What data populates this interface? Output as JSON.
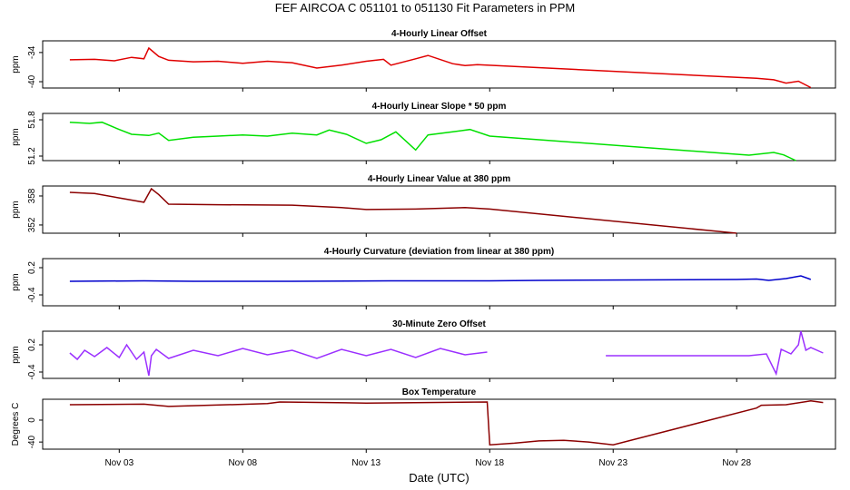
{
  "title": "FEF   AIRCOA C   051101 to 051130   Fit Parameters in PPM",
  "chart_data": [
    {
      "type": "line",
      "title": "4-Hourly Linear Offset",
      "ylabel": "ppm",
      "color": "#e00000",
      "xlim": [
        -0.1,
        32
      ],
      "ylim": [
        -41.3,
        -31.6
      ],
      "yticks": [
        -40,
        -34
      ],
      "x": [
        1,
        2,
        2.8,
        3.5,
        4,
        4.2,
        4.6,
        5,
        6,
        7,
        8,
        9,
        10,
        11,
        12,
        13,
        13.7,
        14,
        15,
        15.5,
        16.5,
        17,
        17.5,
        28.8,
        29.5,
        30,
        30.5,
        31
      ],
      "values": [
        -35.5,
        -35.4,
        -35.7,
        -35.0,
        -35.3,
        -33.1,
        -34.8,
        -35.6,
        -35.9,
        -35.8,
        -36.2,
        -35.8,
        -36.1,
        -37.2,
        -36.6,
        -35.8,
        -35.4,
        -36.6,
        -35.3,
        -34.6,
        -36.3,
        -36.7,
        -36.5,
        -39.3,
        -39.6,
        -40.3,
        -39.9,
        -41.2
      ]
    },
    {
      "type": "line",
      "title": "4-Hourly Linear Slope * 50 ppm",
      "ylabel": "ppm",
      "color": "#00e000",
      "xlim": [
        -0.1,
        32
      ],
      "ylim": [
        51.125,
        51.905
      ],
      "yticks": [
        51.2,
        51.8
      ],
      "x": [
        1,
        1.8,
        2.3,
        3,
        3.5,
        4.2,
        4.6,
        5,
        6,
        7,
        8,
        9,
        10,
        11,
        11.5,
        12.2,
        13,
        13.6,
        14.2,
        15,
        15.5,
        16.5,
        17.2,
        18,
        28.5,
        29.5,
        29.9,
        30.4
      ],
      "values": [
        51.76,
        51.74,
        51.76,
        51.64,
        51.56,
        51.54,
        51.58,
        51.46,
        51.51,
        51.53,
        51.55,
        51.53,
        51.58,
        51.55,
        51.63,
        51.56,
        51.41,
        51.47,
        51.6,
        51.3,
        51.55,
        51.6,
        51.64,
        51.53,
        51.215,
        51.26,
        51.22,
        51.125
      ]
    },
    {
      "type": "line",
      "title": "4-Hourly Linear Value at 380 ppm",
      "ylabel": "ppm",
      "color": "#8b0000",
      "xlim": [
        -0.1,
        32
      ],
      "ylim": [
        350.3,
        360.06
      ],
      "yticks": [
        352,
        358
      ],
      "x": [
        1,
        2,
        3,
        4,
        4.3,
        4.6,
        5,
        7,
        10,
        12,
        13,
        15,
        17,
        18,
        28
      ],
      "values": [
        358.75,
        358.5,
        357.6,
        356.7,
        359.5,
        358.3,
        356.3,
        356.2,
        356.1,
        355.6,
        355.2,
        355.3,
        355.6,
        355.3,
        350.3
      ]
    },
    {
      "type": "line",
      "title": "4-Hourly Curvature (deviation from linear at 380 ppm)",
      "ylabel": "ppm",
      "color": "#0000cc",
      "xlim": [
        -0.1,
        32
      ],
      "ylim": [
        -0.64,
        0.4
      ],
      "yticks": [
        -0.4,
        0.2
      ],
      "x": [
        1,
        4,
        6,
        10,
        14,
        18,
        20,
        24,
        28,
        28.8,
        29.3,
        30,
        30.6,
        31
      ],
      "values": [
        -0.1,
        -0.09,
        -0.1,
        -0.1,
        -0.09,
        -0.09,
        -0.08,
        -0.07,
        -0.06,
        -0.05,
        -0.08,
        -0.04,
        0.02,
        -0.06
      ]
    },
    {
      "type": "line",
      "title": "30-Minute Zero Offset",
      "ylabel": "ppm",
      "color": "#9b30ff",
      "xlim": [
        -0.1,
        32
      ],
      "ylim": [
        -0.54,
        0.5
      ],
      "yticks": [
        -0.4,
        0.2
      ],
      "x": [
        1,
        1.3,
        1.6,
        2,
        2.5,
        3,
        3.3,
        3.7,
        4,
        4.2,
        4.3,
        4.5,
        5,
        6,
        7,
        8,
        9,
        10,
        11,
        12,
        13,
        14,
        15,
        16,
        17,
        17.9,
        18,
        22.7,
        28.5,
        29.2,
        29.6,
        29.8,
        30.2,
        30.5,
        30.6,
        30.8,
        31,
        31.5
      ],
      "values": [
        0.02,
        -0.12,
        0.08,
        -0.06,
        0.14,
        -0.08,
        0.2,
        -0.12,
        0.04,
        -0.48,
        -0.04,
        0.1,
        -0.1,
        0.08,
        -0.04,
        0.12,
        -0.02,
        0.08,
        -0.1,
        0.1,
        -0.04,
        0.1,
        -0.08,
        0.12,
        -0.02,
        0.04,
        null,
        -0.04,
        -0.04,
        0.0,
        -0.44,
        0.1,
        0.0,
        0.2,
        0.5,
        0.08,
        0.14,
        0.02
      ]
    },
    {
      "type": "line",
      "title": "Box Temperature",
      "ylabel": "Degrees C",
      "xlabel": "Date (UTC)",
      "color": "#8b0000",
      "xlim": [
        -0.1,
        32
      ],
      "ylim": [
        -53,
        38
      ],
      "yticks": [
        -40,
        0
      ],
      "xticks": [
        {
          "value": 3,
          "label": "Nov 03"
        },
        {
          "value": 8,
          "label": "Nov 08"
        },
        {
          "value": 13,
          "label": "Nov 13"
        },
        {
          "value": 18,
          "label": "Nov 18"
        },
        {
          "value": 23,
          "label": "Nov 23"
        },
        {
          "value": 28,
          "label": "Nov 28"
        }
      ],
      "x": [
        1,
        4,
        4.5,
        5,
        9,
        9.5,
        13,
        17.9,
        18,
        19,
        20,
        21,
        22,
        23,
        28.8,
        29,
        30,
        31,
        31.5
      ],
      "values": [
        28,
        29,
        27,
        25,
        30,
        33,
        31,
        33,
        -45,
        -42,
        -38,
        -37,
        -40,
        -45,
        22,
        27,
        28,
        35,
        32
      ]
    }
  ]
}
